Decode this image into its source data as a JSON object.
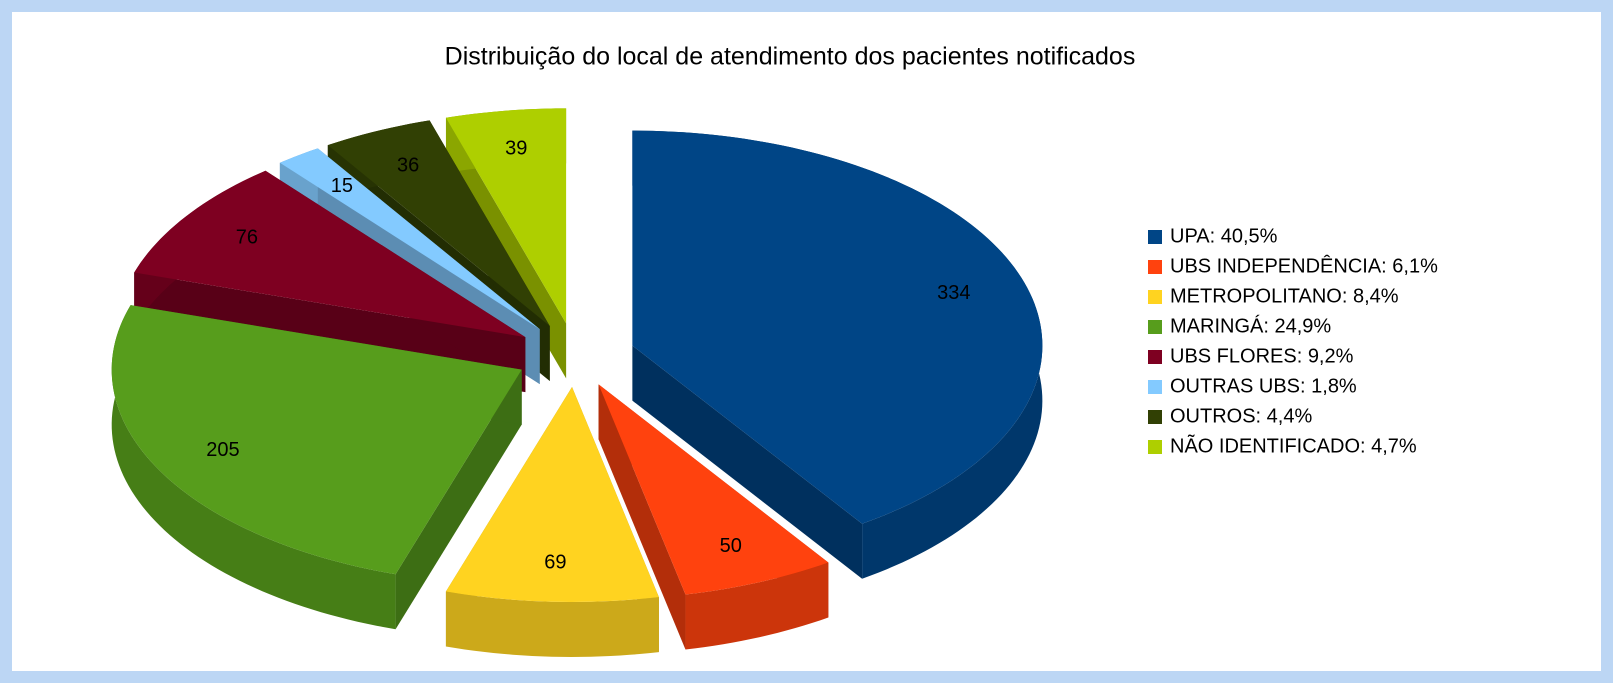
{
  "chart_data": {
    "type": "pie",
    "title": "Distribuição do local de atendimento dos pacientes notificados",
    "categories": [
      "UPA: 40,5%",
      "UBS INDEPENDÊNCIA: 6,1%",
      "METROPOLITANO: 8,4%",
      "MARINGÁ: 24,9%",
      "UBS FLORES: 9,2%",
      "OUTRAS UBS: 1,8%",
      "OUTROS: 4,4%",
      "NÃO IDENTIFICADO: 4,7%"
    ],
    "values": [
      334,
      50,
      69,
      205,
      76,
      15,
      36,
      39
    ],
    "colors": [
      "#004586",
      "#ff420e",
      "#ffd320",
      "#579d1c",
      "#7e0021",
      "#83caff",
      "#314004",
      "#aecf00"
    ],
    "legend": "right"
  }
}
